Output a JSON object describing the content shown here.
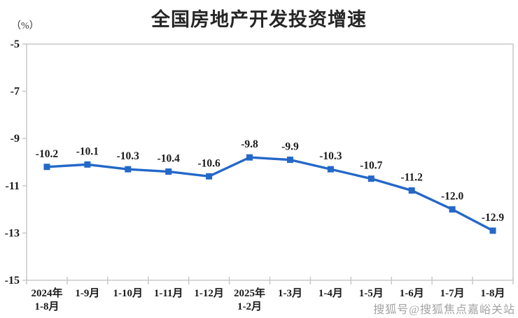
{
  "chart_data": {
    "type": "line",
    "title": "全国房地产开发投资增速",
    "unit_label": "（%）",
    "xlabel": "",
    "ylabel": "（%）",
    "categories": [
      [
        "2024年",
        "1-8月"
      ],
      [
        "1-9月"
      ],
      [
        "1-10月"
      ],
      [
        "1-11月"
      ],
      [
        "1-12月"
      ],
      [
        "2025年",
        "1-2月"
      ],
      [
        "1-3月"
      ],
      [
        "1-4月"
      ],
      [
        "1-5月"
      ],
      [
        "1-6月"
      ],
      [
        "1-7月"
      ],
      [
        "1-8月"
      ]
    ],
    "values": [
      -10.2,
      -10.1,
      -10.3,
      -10.4,
      -10.6,
      -9.8,
      -9.9,
      -10.3,
      -10.7,
      -11.2,
      -12.0,
      -12.9
    ],
    "data_labels": [
      "-10.2",
      "-10.1",
      "-10.3",
      "-10.4",
      "-10.6",
      "-9.8",
      "-9.9",
      "-10.3",
      "-10.7",
      "-11.2",
      "-12.0",
      "-12.9"
    ],
    "ylim": [
      -15,
      -5
    ],
    "yticks": [
      -5,
      -7,
      -9,
      -11,
      -13,
      -15
    ],
    "grid": false,
    "legend": "none",
    "marker": "square",
    "line_color": "#2468c8",
    "axis_color": "#c9c9c9",
    "label_color": "#1a1a1a"
  },
  "watermark": {
    "text": "搜狐号@搜狐焦点嘉峪关站"
  }
}
